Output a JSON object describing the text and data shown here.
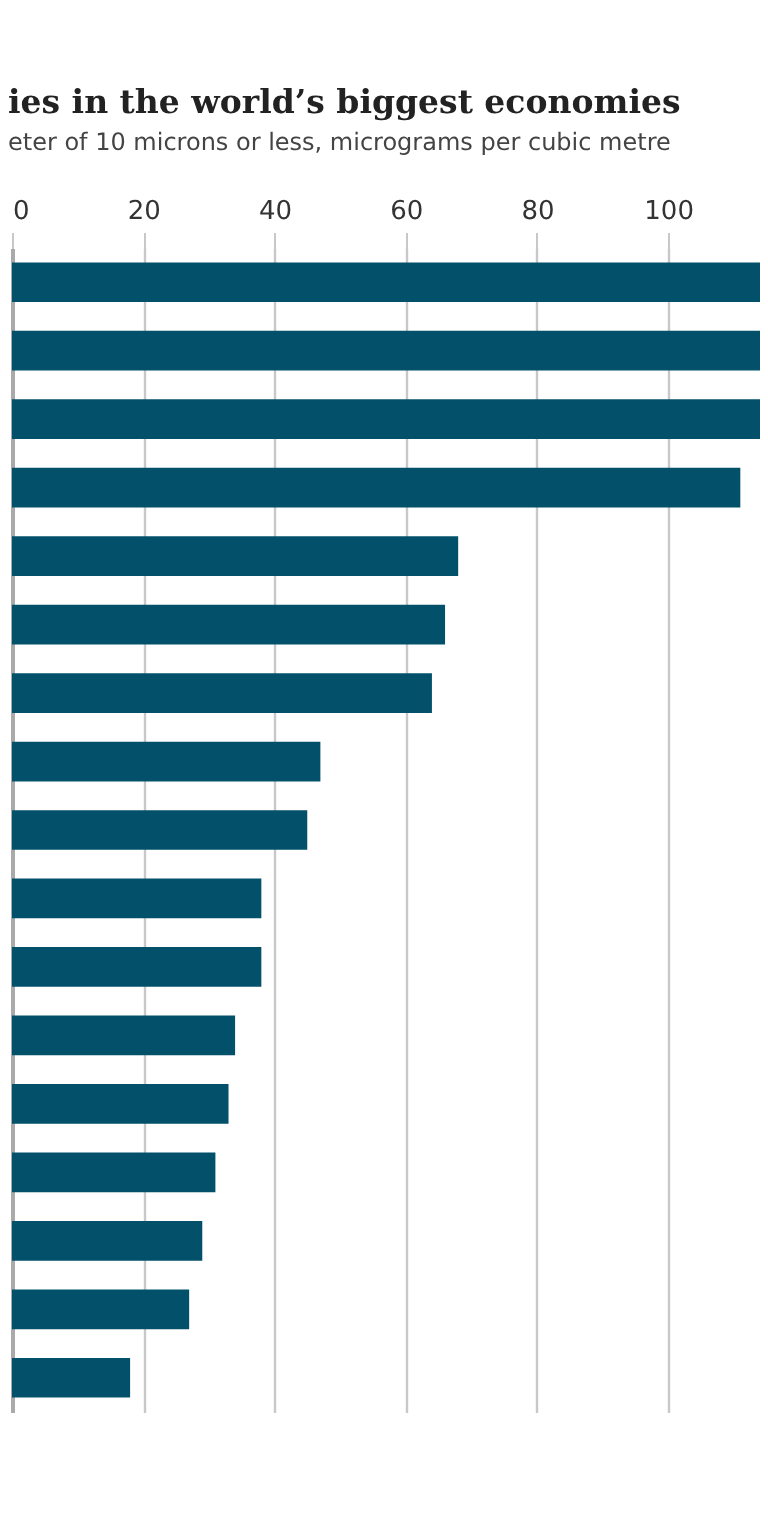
{
  "chart_data": {
    "type": "bar",
    "orientation": "horizontal",
    "title": "ies in the world’s biggest economies",
    "subtitle": "eter of 10 microns or less, micrograms per cubic metre",
    "categories": [
      null,
      null,
      null,
      null,
      null,
      null,
      null,
      null,
      null,
      null,
      null,
      null,
      null,
      null,
      null,
      null,
      null
    ],
    "values": [
      114,
      114,
      114,
      111,
      68,
      66,
      64,
      47,
      45,
      38,
      38,
      34,
      33,
      31,
      29,
      27,
      18
    ],
    "color": "#02506a",
    "xlim": [
      0,
      114
    ],
    "xticks": [
      0,
      20,
      40,
      60,
      80,
      100
    ],
    "grid": "x"
  }
}
